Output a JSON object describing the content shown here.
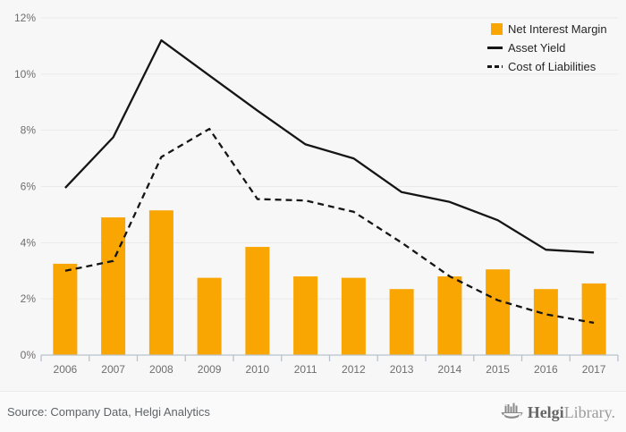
{
  "chart_data": {
    "type": "combo",
    "title": "",
    "categories": [
      "2006",
      "2007",
      "2008",
      "2009",
      "2010",
      "2011",
      "2012",
      "2013",
      "2014",
      "2015",
      "2016",
      "2017"
    ],
    "series": [
      {
        "name": "Net Interest Margin",
        "type": "bar",
        "color": "#f9a602",
        "values": [
          3.25,
          4.9,
          5.15,
          2.75,
          3.85,
          2.8,
          2.75,
          2.35,
          2.8,
          3.05,
          2.35,
          2.55
        ]
      },
      {
        "name": "Asset Yield",
        "type": "line",
        "style": "solid",
        "color": "#151515",
        "values": [
          5.95,
          7.75,
          11.2,
          9.95,
          8.7,
          7.5,
          7.0,
          5.8,
          5.45,
          4.8,
          3.75,
          3.65
        ]
      },
      {
        "name": "Cost of Liabilities",
        "type": "line",
        "style": "dashed",
        "color": "#151515",
        "values": [
          3.0,
          3.35,
          7.05,
          8.05,
          5.55,
          5.5,
          5.1,
          4.0,
          2.8,
          1.95,
          1.45,
          1.15
        ]
      }
    ],
    "xlabel": "",
    "ylabel": "",
    "ylim": [
      0,
      12
    ],
    "y_tick_step": 2,
    "y_tick_labels": [
      "0%",
      "2%",
      "4%",
      "6%",
      "8%",
      "10%",
      "12%"
    ],
    "y_tick_format": "percent",
    "grid": true,
    "legend_position": "top-right"
  },
  "legend": {
    "items": [
      {
        "label": "Net Interest Margin",
        "swatch": "square"
      },
      {
        "label": "Asset Yield",
        "swatch": "solid-line"
      },
      {
        "label": "Cost of Liabilities",
        "swatch": "dashed-line"
      }
    ]
  },
  "footer": {
    "source_text": "Source: Company Data, Helgi Analytics",
    "logo": {
      "icon": "helgi-ship-icon",
      "brand_bold": "Helgi",
      "brand_light": "Library."
    }
  },
  "colors": {
    "background": "#f7f7f7",
    "footer_background": "#fafafa",
    "bar_orange": "#f9a602",
    "line_black": "#151515",
    "gridline": "#e9e9e9",
    "axis": "#b7c2cc",
    "axis_text": "#6e6e6e",
    "legend_text": "#262626",
    "footer_text": "#5f6368",
    "logo_gray": "#8a8a8a"
  }
}
